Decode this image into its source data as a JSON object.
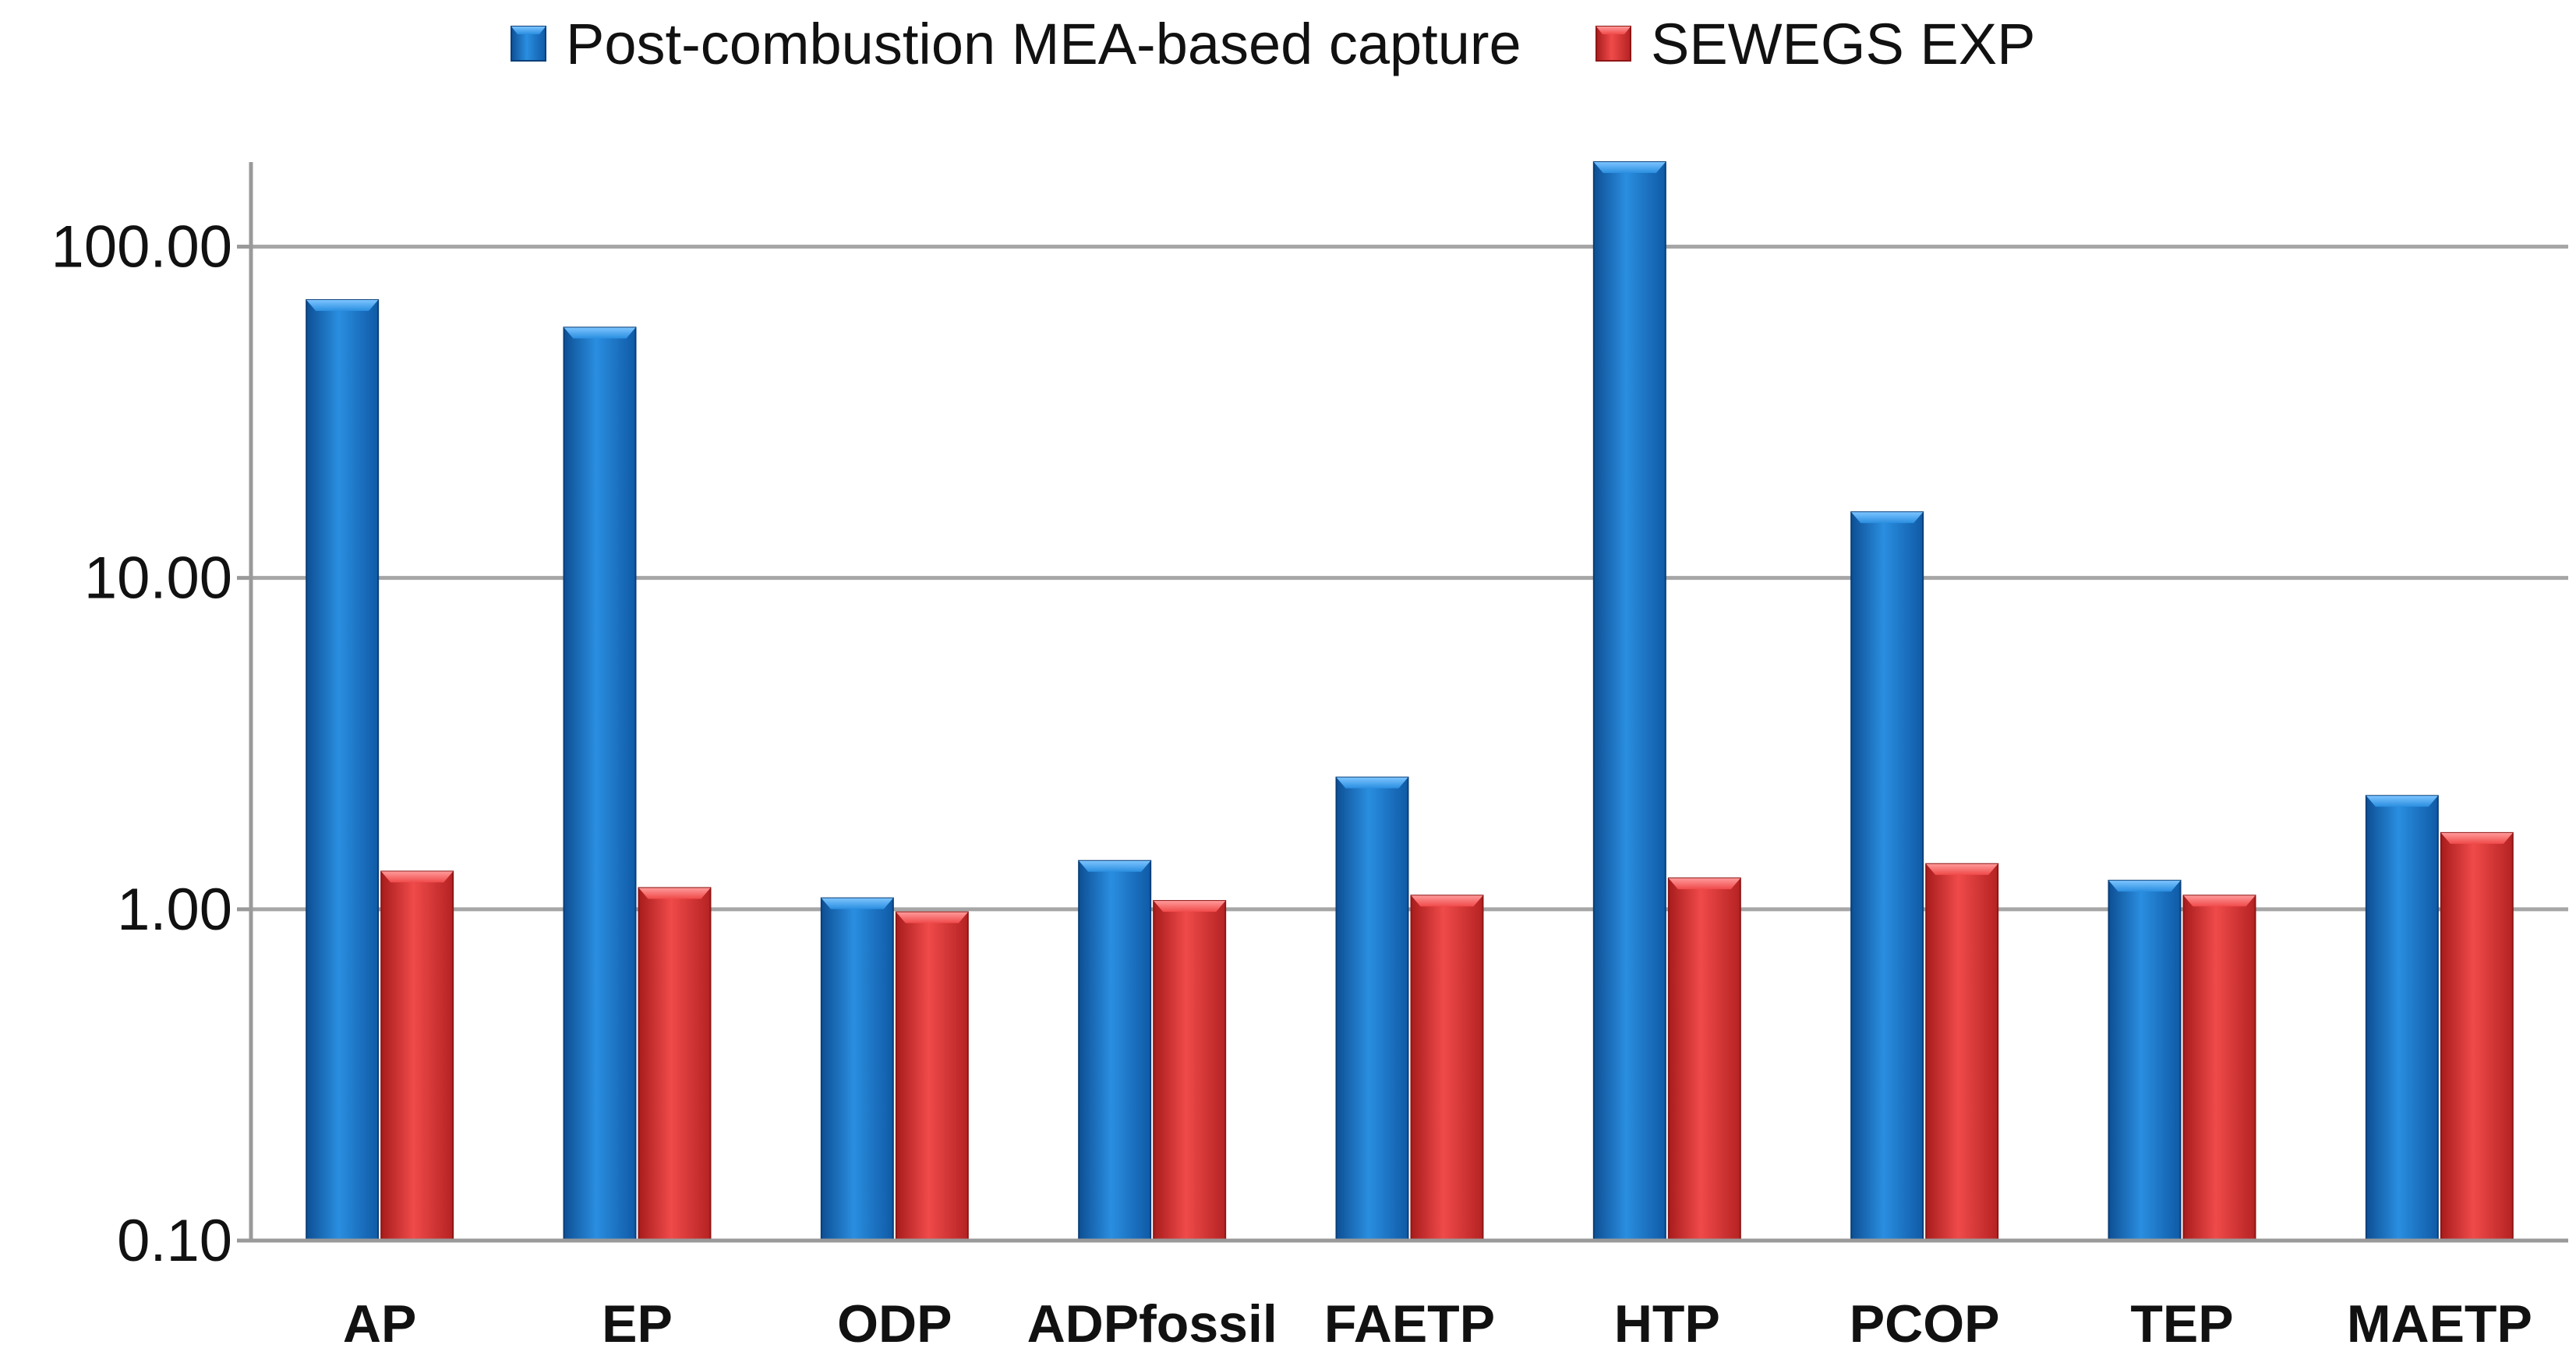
{
  "chart_data": {
    "type": "bar",
    "categories": [
      "AP",
      "EP",
      "ODP",
      "ADPfossil",
      "FAETP",
      "HTP",
      "PCOP",
      "TEP",
      "MAETP"
    ],
    "series": [
      {
        "name": "Post-combustion MEA-based capture",
        "color": "#1f78c8",
        "values": [
          69,
          57,
          1.08,
          1.4,
          2.5,
          180,
          15.8,
          1.22,
          2.2
        ]
      },
      {
        "name": "SEWEGS EXP",
        "color": "#e03535",
        "values": [
          1.3,
          1.16,
          0.98,
          1.06,
          1.1,
          1.24,
          1.37,
          1.1,
          1.7
        ]
      }
    ],
    "yscale": "log",
    "ylim": [
      0.1,
      180
    ],
    "yticks": [
      0.1,
      1,
      10,
      100
    ],
    "ytick_labels": [
      "0.10",
      "1.00",
      "10.00",
      "100.00"
    ],
    "grid": true,
    "legend_position": "top"
  }
}
